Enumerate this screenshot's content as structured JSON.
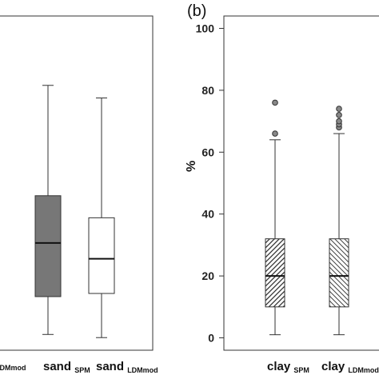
{
  "chart_data": [
    {
      "type": "box",
      "panel": "a",
      "categories": [
        {
          "main": "sand",
          "sub": "SPM"
        },
        {
          "main": "sand",
          "sub": "LDMmod"
        }
      ],
      "cut_label": "LDMmod",
      "boxes": [
        {
          "whisker_low": 1,
          "q1": 13,
          "median": 30,
          "q3": 45,
          "whisker_high": 80,
          "color": "#777777",
          "pattern": "solid"
        },
        {
          "whisker_low": 0,
          "q1": 14,
          "median": 25,
          "q3": 38,
          "whisker_high": 76,
          "color": "#ffffff",
          "pattern": "solid"
        }
      ],
      "ylim": [
        -4,
        102
      ]
    },
    {
      "type": "box",
      "panel": "b",
      "panel_label": "(b)",
      "ylabel": "%",
      "yticks": [
        "0",
        "20",
        "40",
        "60",
        "80",
        "100"
      ],
      "yticks_values": [
        0,
        20,
        40,
        60,
        80,
        100
      ],
      "categories": [
        {
          "main": "clay",
          "sub": "SPM"
        },
        {
          "main": "clay",
          "sub": "LDMmod"
        }
      ],
      "boxes": [
        {
          "whisker_low": 1,
          "q1": 10,
          "median": 20,
          "q3": 32,
          "whisker_high": 64,
          "outliers": [
            66,
            76
          ],
          "pattern": "hatch-right"
        },
        {
          "whisker_low": 1,
          "q1": 10,
          "median": 20,
          "q3": 32,
          "whisker_high": 66,
          "outliers": [
            68,
            69,
            70,
            72,
            74
          ],
          "pattern": "hatch-left"
        }
      ],
      "ylim": [
        -4,
        104
      ]
    }
  ]
}
